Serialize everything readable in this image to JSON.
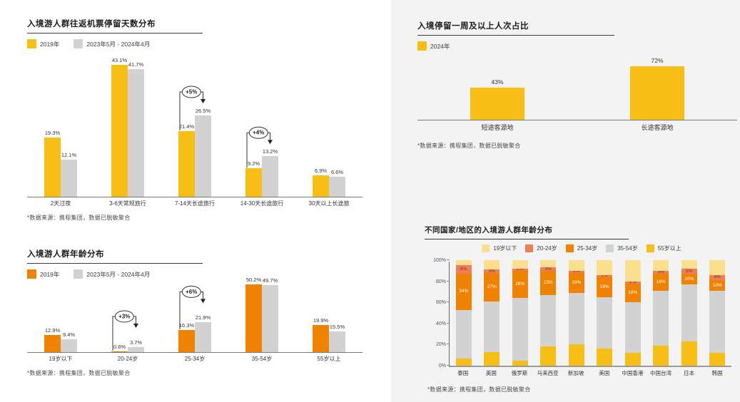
{
  "page": {
    "right_panel_bg": "#f3f3f3",
    "accent_yellow": "#F7BE16",
    "accent_orange": "#EF8200",
    "accent_salmon": "#EE7E5A",
    "accent_light_yellow": "#FADF8F",
    "neutral_gray": "#D2D2D2"
  },
  "chart_data": [
    {
      "id": "stay-days",
      "type": "bar",
      "title": "入境游人群往返机票停留天数分布",
      "footnote": "*数据来源：携程集团，数据已脱敏聚合",
      "unit": "%",
      "ylim": [
        0,
        45
      ],
      "grid": false,
      "legend_position": "top-left",
      "categories": [
        "2天过夜",
        "3-6天常规旅行",
        "7-14天长途旅行",
        "14-30天长途旅行",
        "30天以上长途旅"
      ],
      "series": [
        {
          "name": "2019年",
          "color": "#F7BE16",
          "values": [
            19.3,
            43.1,
            21.4,
            9.2,
            6.9
          ]
        },
        {
          "name": "2023年5月 - 2024年4月",
          "color": "#D2D2D2",
          "values": [
            12.1,
            41.7,
            26.5,
            13.2,
            6.6
          ]
        }
      ],
      "annotations": [
        {
          "category_index": 2,
          "text": "+5%"
        },
        {
          "category_index": 3,
          "text": "+4%"
        }
      ]
    },
    {
      "id": "week-stay",
      "type": "bar",
      "title": "入境停留一周及以上人次占比",
      "footnote": "*数据来源：携程集团，数据已脱敏聚合",
      "unit": "%",
      "ylim": [
        0,
        80
      ],
      "grid": false,
      "legend_position": "top-left",
      "categories": [
        "短途客源地",
        "长途客源地"
      ],
      "series": [
        {
          "name": "2024年",
          "color": "#F7BE16",
          "values": [
            43,
            72
          ]
        }
      ],
      "annotations": []
    },
    {
      "id": "age-dist",
      "type": "bar",
      "title": "入境游人群年龄分布",
      "footnote": "*数据来源：携程集团，数据已脱敏聚合",
      "unit": "%",
      "ylim": [
        0,
        55
      ],
      "grid": false,
      "legend_position": "top-left",
      "categories": [
        "19岁以下",
        "20-24岁",
        "25-34岁",
        "35-54岁",
        "55岁以上"
      ],
      "series": [
        {
          "name": "2019年",
          "color": "#EF8200",
          "values": [
            12.9,
            0.6,
            16.3,
            50.2,
            19.9
          ]
        },
        {
          "name": "2023年5月 - 2024年4月",
          "color": "#D2D2D2",
          "values": [
            9.4,
            3.7,
            21.9,
            49.7,
            15.5
          ]
        }
      ],
      "annotations": [
        {
          "category_index": 1,
          "text": "+3%"
        },
        {
          "category_index": 2,
          "text": "+6%"
        }
      ]
    },
    {
      "id": "country-age",
      "type": "stacked-bar",
      "title": "不同国家/地区的入境游人群年龄分布",
      "footnote": "*数据来源：携程集团，数据已脱敏聚合",
      "unit": "%",
      "ylim": [
        0,
        100
      ],
      "y_ticks": [
        "0%",
        "20%",
        "40%",
        "60%",
        "80%",
        "100%"
      ],
      "grid": false,
      "legend_position": "top-center",
      "legend_order": [
        "19岁以下",
        "20-24岁",
        "25-34岁",
        "35-54岁",
        "55岁以上"
      ],
      "categories": [
        "泰国",
        "英国",
        "俄罗斯",
        "马来西亚",
        "新加坡",
        "美国",
        "中国香港",
        "中国台湾",
        "日本",
        "韩国"
      ],
      "series": [
        {
          "name": "55岁以上",
          "color": "#F7BE16",
          "labeled": false,
          "values": [
            7,
            13,
            5,
            18,
            20,
            16,
            12,
            19,
            23,
            12
          ]
        },
        {
          "name": "35-54岁",
          "color": "#D2D2D2",
          "labeled": false,
          "values": [
            46,
            48,
            59,
            49,
            49,
            49,
            48,
            52,
            54,
            59
          ]
        },
        {
          "name": "25-34岁",
          "color": "#EF8200",
          "labeled": true,
          "label_color": "#ffffff",
          "values": [
            34,
            27,
            26,
            23,
            19,
            19,
            18,
            16,
            10,
            10
          ]
        },
        {
          "name": "20-24岁",
          "color": "#EE7E5A",
          "labeled": true,
          "label_color": "#7a3415",
          "values": [
            8,
            3,
            2,
            3,
            2,
            2,
            2,
            3,
            5,
            5
          ]
        },
        {
          "name": "19岁以下",
          "color": "#FADF8F",
          "labeled": false,
          "values": [
            5,
            9,
            8,
            7,
            10,
            14,
            20,
            10,
            8,
            14
          ]
        }
      ],
      "annotations": []
    }
  ]
}
